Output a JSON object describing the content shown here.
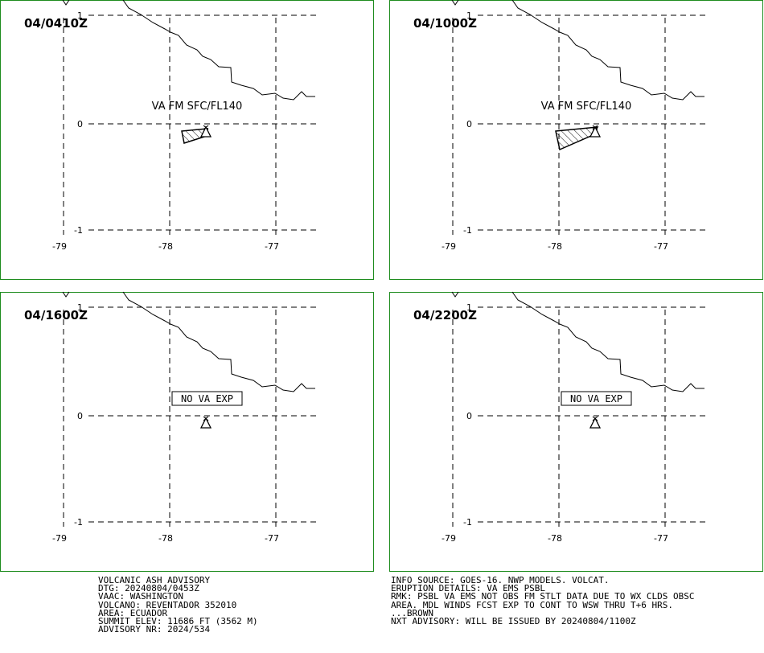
{
  "panels": [
    {
      "time": "04/0410Z",
      "label": "VA FM SFC/FL140",
      "label_type": "va",
      "ash_area": "small"
    },
    {
      "time": "04/1000Z",
      "label": "VA FM SFC/FL140",
      "label_type": "va",
      "ash_area": "large"
    },
    {
      "time": "04/1600Z",
      "label": "NO VA EXP",
      "label_type": "none",
      "ash_area": "none"
    },
    {
      "time": "04/2200Z",
      "label": "NO VA EXP",
      "label_type": "none",
      "ash_area": "none"
    }
  ],
  "axes": {
    "lon_ticks": [
      "-79",
      "-78",
      "-77"
    ],
    "lat_ticks": [
      "1",
      "0",
      "-1"
    ]
  },
  "colors": {
    "panel_border": "#1e8c1e",
    "ink": "#000000"
  },
  "advisory_left": [
    "VOLCANIC ASH ADVISORY",
    "DTG: 20240804/0453Z",
    "VAAC: WASHINGTON",
    "VOLCANO: REVENTADOR 352010",
    "AREA: ECUADOR",
    "SUMMIT ELEV: 11686 FT (3562 M)",
    "ADVISORY NR: 2024/534"
  ],
  "advisory_right": [
    "INFO SOURCE: GOES-16. NWP MODELS. VOLCAT.",
    "ERUPTION DETAILS: VA EMS PSBL",
    "RMK: PSBL VA EMS NOT OBS FM STLT DATA DUE TO WX CLDS OBSC",
    "AREA. MDL WINDS FCST EXP TO CONT TO WSW THRU T+6 HRS.",
    "...BROWN",
    "NXT ADVISORY: WILL BE ISSUED BY 20240804/1100Z"
  ]
}
